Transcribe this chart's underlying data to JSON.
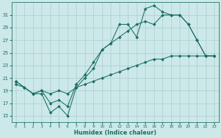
{
  "title": "",
  "xlabel": "Humidex (Indice chaleur)",
  "bg_color": "#cce8e8",
  "grid_color": "#aacccc",
  "line_color": "#1a7060",
  "xlim": [
    -0.5,
    23.5
  ],
  "ylim": [
    14,
    33
  ],
  "yticks": [
    15,
    17,
    19,
    21,
    23,
    25,
    27,
    29,
    31
  ],
  "xticks": [
    0,
    1,
    2,
    3,
    4,
    5,
    6,
    7,
    8,
    9,
    10,
    11,
    12,
    13,
    14,
    15,
    16,
    17,
    18,
    19,
    20,
    21,
    22,
    23
  ],
  "line_zigzag_x": [
    0,
    1,
    2,
    3,
    4,
    5,
    6,
    7,
    8,
    9,
    10,
    11,
    12,
    13,
    14,
    15,
    16,
    17,
    18,
    19,
    20,
    21,
    22,
    23
  ],
  "line_zigzag_y": [
    20.5,
    19.5,
    18.5,
    18.5,
    15.5,
    16.5,
    15.0,
    19.5,
    21.0,
    22.5,
    25.5,
    26.5,
    29.5,
    29.5,
    27.5,
    32.0,
    32.5,
    31.5,
    31.0,
    31.0,
    29.5,
    27.0,
    24.5,
    24.5
  ],
  "line_mid_x": [
    0,
    1,
    2,
    3,
    4,
    5,
    6,
    7,
    8,
    9,
    10,
    11,
    12,
    13,
    14,
    15,
    16,
    17,
    18,
    19,
    20,
    21,
    22,
    23
  ],
  "line_mid_y": [
    20.5,
    19.5,
    18.5,
    19.0,
    17.0,
    17.5,
    16.5,
    20.0,
    21.5,
    23.5,
    25.5,
    26.5,
    27.5,
    28.5,
    29.5,
    30.0,
    29.5,
    31.0,
    31.0,
    31.0,
    29.5,
    27.0,
    24.5,
    24.5
  ],
  "line_low_x": [
    0,
    1,
    2,
    3,
    4,
    5,
    6,
    7,
    8,
    9,
    10,
    11,
    12,
    13,
    14,
    15,
    16,
    17,
    18,
    19,
    20,
    21,
    22,
    23
  ],
  "line_low_y": [
    20.0,
    19.5,
    18.5,
    19.0,
    18.5,
    19.0,
    18.5,
    19.5,
    20.0,
    20.5,
    21.0,
    21.5,
    22.0,
    22.5,
    23.0,
    23.5,
    24.0,
    24.0,
    24.5,
    24.5,
    24.5,
    24.5,
    24.5,
    24.5
  ]
}
